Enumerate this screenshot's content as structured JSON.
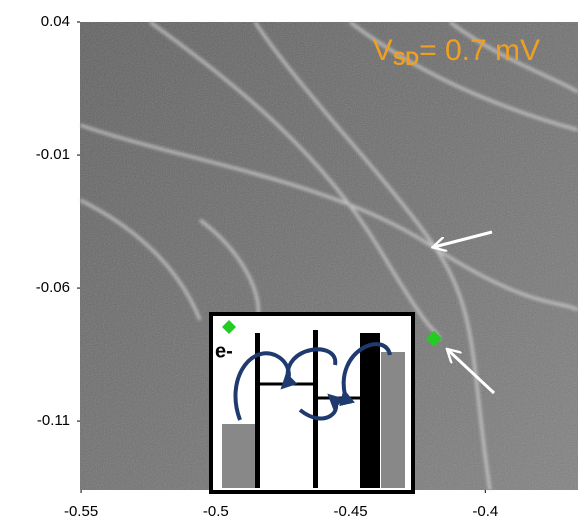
{
  "chart_data": {
    "type": "scatter",
    "annotation": {
      "text": "V",
      "subscript": "SD",
      "rest": "= 0.7 mV"
    },
    "inset_label": "e-",
    "xlim": [
      -0.5504,
      -0.3656
    ],
    "ylim": [
      -0.1359,
      0.04
    ],
    "xticks": [
      -0.55,
      -0.5,
      -0.45,
      -0.4
    ],
    "yticks": [
      0.04,
      -0.01,
      -0.06,
      -0.11
    ],
    "series": [
      {
        "color": "#22cc22",
        "x": [
          -0.419
        ],
        "values": [
          -0.079
        ]
      }
    ]
  }
}
